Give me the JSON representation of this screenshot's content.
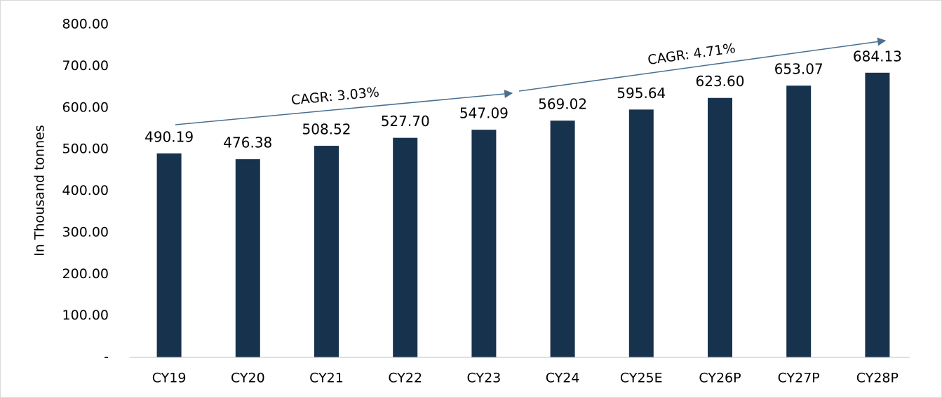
{
  "chart_data": {
    "type": "bar",
    "y_axis_label": "In Thousand tonnes",
    "categories": [
      "CY19",
      "CY20",
      "CY21",
      "CY22",
      "CY23",
      "CY24",
      "CY25E",
      "CY26P",
      "CY27P",
      "CY28P"
    ],
    "values": [
      490.19,
      476.38,
      508.52,
      527.7,
      547.09,
      569.02,
      595.64,
      623.6,
      653.07,
      684.13
    ],
    "value_labels": [
      "490.19",
      "476.38",
      "508.52",
      "527.70",
      "547.09",
      "569.02",
      "595.64",
      "623.60",
      "653.07",
      "684.13"
    ],
    "color": "#17324d",
    "ylim": [
      0,
      800
    ],
    "yticks": [
      {
        "value": 0,
        "label": "-"
      },
      {
        "value": 100,
        "label": "100.00"
      },
      {
        "value": 200,
        "label": "200.00"
      },
      {
        "value": 300,
        "label": "300.00"
      },
      {
        "value": 400,
        "label": "400.00"
      },
      {
        "value": 500,
        "label": "500.00"
      },
      {
        "value": 600,
        "label": "600.00"
      },
      {
        "value": 700,
        "label": "700.00"
      },
      {
        "value": 800,
        "label": "800.00"
      }
    ],
    "annotations": [
      "CAGR: 3.03%",
      "CAGR: 4.71%"
    ],
    "grid": false
  }
}
